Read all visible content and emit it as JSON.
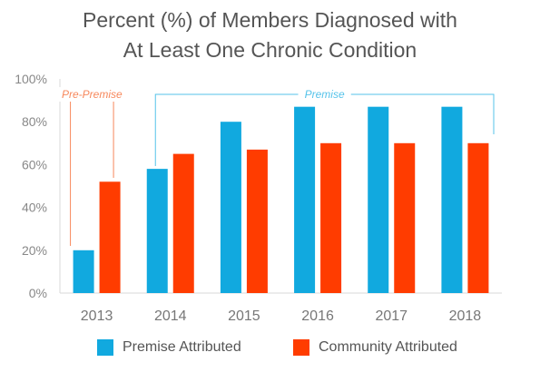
{
  "chart_data": {
    "type": "bar",
    "title_line1": "Percent (%) of Members Diagnosed with",
    "title_line2": "At Least One Chronic Condition",
    "categories": [
      "2013",
      "2014",
      "2015",
      "2016",
      "2017",
      "2018"
    ],
    "series": [
      {
        "name": "Premise Attributed",
        "color": "#11a9df",
        "values": [
          20,
          58,
          80,
          87,
          87,
          87
        ]
      },
      {
        "name": "Community Attributed",
        "color": "#ff3c00",
        "values": [
          52,
          65,
          67,
          70,
          70,
          70
        ]
      }
    ],
    "ylim": [
      0,
      100
    ],
    "yticks": [
      "0%",
      "20%",
      "40%",
      "60%",
      "80%",
      "100%"
    ],
    "annotations": [
      {
        "label": "Pre-Premise",
        "color": "#f7885c",
        "from_category": "2013",
        "to_category": "2013"
      },
      {
        "label": "Premise",
        "color": "#55c3ea",
        "from_category": "2014",
        "to_category": "2018"
      }
    ],
    "grid": false,
    "legend": "bottom"
  }
}
